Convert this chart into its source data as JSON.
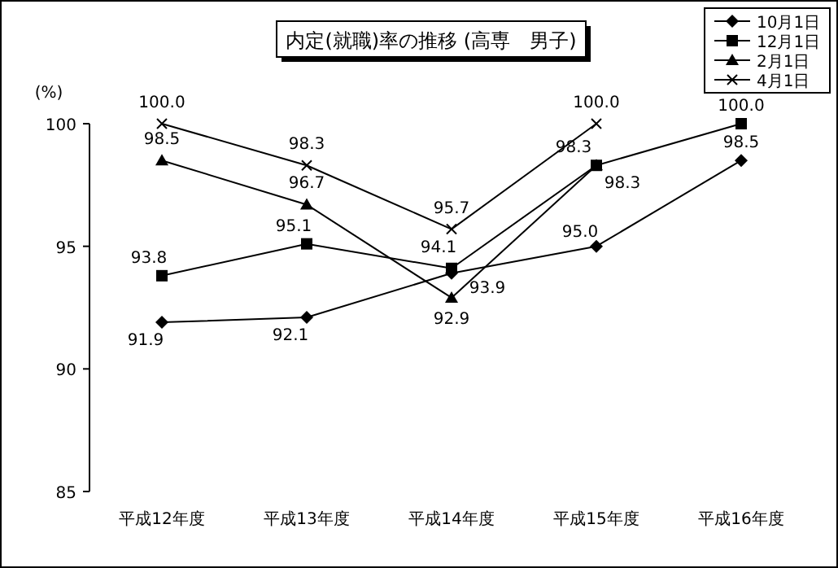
{
  "chart_data": {
    "type": "line",
    "title": "内定(就職)率の推移 (高専　男子)",
    "ylabel": "(%)",
    "categories": [
      "平成12年度",
      "平成13年度",
      "平成14年度",
      "平成15年度",
      "平成16年度"
    ],
    "series": [
      {
        "name": "10月1日",
        "color": "#000000",
        "marker": "diamond",
        "values": [
          91.9,
          92.1,
          93.9,
          95.0,
          98.5
        ],
        "value_labels": [
          "91.9",
          "92.1",
          "93.9",
          "95.0",
          "98.5"
        ]
      },
      {
        "name": "12月1日",
        "color": "#000000",
        "marker": "square",
        "values": [
          93.8,
          95.1,
          94.1,
          98.3,
          100.0
        ],
        "value_labels": [
          "93.8",
          "95.1",
          "94.1",
          "98.3",
          "100.0"
        ]
      },
      {
        "name": "2月1日",
        "color": "#000000",
        "marker": "triangle",
        "values": [
          98.5,
          96.7,
          92.9,
          98.3,
          null
        ],
        "value_labels": [
          "98.5",
          "96.7",
          "92.9",
          "98.3",
          null
        ]
      },
      {
        "name": "4月1日",
        "color": "#000000",
        "marker": "cross",
        "values": [
          100.0,
          98.3,
          95.7,
          100.0,
          null
        ],
        "value_labels": [
          "100.0",
          "98.3",
          "95.7",
          "100.0",
          null
        ]
      }
    ],
    "ylim": [
      85,
      100
    ],
    "yticks": [
      85,
      90,
      95,
      100
    ],
    "legend": "top right",
    "grid": false,
    "line_style": "solid"
  }
}
